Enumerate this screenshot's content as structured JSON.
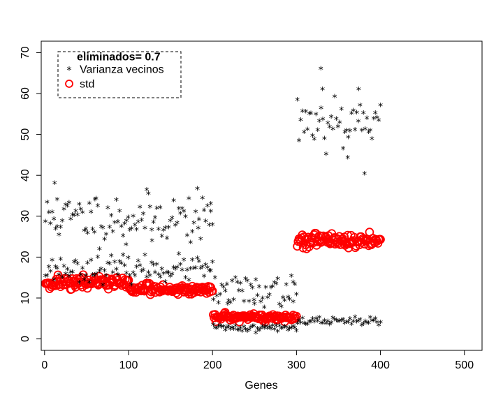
{
  "colors": {
    "series_star": "#000000",
    "series_std": "#ff0000"
  },
  "chart_data": {
    "type": "scatter",
    "xlabel": "Genes",
    "ylabel": "",
    "xlim": [
      -4,
      521
    ],
    "ylim": [
      -2.8,
      72.8
    ],
    "xticks": [
      "0",
      "100",
      "200",
      "300",
      "400",
      "500"
    ],
    "yticks": [
      "0",
      "10",
      "20",
      "30",
      "40",
      "50",
      "60",
      "70"
    ],
    "grid": false,
    "legend": {
      "position": "top-left",
      "title": "eliminados= 0.7",
      "entries": [
        {
          "label": "Varianza vecinos",
          "marker": "star",
          "color": "#000000"
        },
        {
          "label": "std",
          "marker": "circle",
          "color": "#ff0000"
        }
      ]
    },
    "series": [
      {
        "name": "Varianza vecinos",
        "marker": "star",
        "groups": [
          {
            "x_range": [
              1,
              200
            ],
            "y_center": 29.5,
            "y_spread": 3.0,
            "n": 100,
            "seed": 11,
            "extra": [
              [
                12,
                38
              ],
              [
                97,
                23
              ],
              [
                128,
                24
              ],
              [
                198,
                33
              ],
              [
                15,
                34
              ],
              [
                60,
                34
              ],
              [
                183,
                27
              ]
            ]
          },
          {
            "x_range": [
              1,
              200
            ],
            "y_center": 17.0,
            "y_spread": 1.5,
            "n": 100,
            "seed": 23,
            "extra": []
          },
          {
            "x_range": [
              201,
              300
            ],
            "y_center": 11.5,
            "y_spread": 1.8,
            "n": 50,
            "seed": 37,
            "extra": [
              [
                218,
                8.5
              ],
              [
                250,
                8.5
              ],
              [
                296,
                9.0
              ]
            ]
          },
          {
            "x_range": [
              201,
              300
            ],
            "y_center": 2.6,
            "y_spread": 0.5,
            "n": 50,
            "seed": 41,
            "extra": []
          },
          {
            "x_range": [
              301,
              400
            ],
            "y_center": 53.5,
            "y_spread": 3.5,
            "n": 50,
            "seed": 53,
            "extra": [
              [
                329,
                66
              ],
              [
                381,
                40.3
              ],
              [
                361,
                44.3
              ],
              [
                331,
                61
              ],
              [
                374,
                61
              ]
            ]
          },
          {
            "x_range": [
              301,
              400
            ],
            "y_center": 4.2,
            "y_spread": 0.5,
            "n": 50,
            "seed": 67,
            "extra": []
          }
        ]
      },
      {
        "name": "std",
        "marker": "circle",
        "groups": [
          {
            "x_range": [
              1,
              100
            ],
            "y_center": 13.8,
            "y_spread": 0.8,
            "n": 100,
            "seed": 71
          },
          {
            "x_range": [
              101,
              200
            ],
            "y_center": 12.1,
            "y_spread": 0.6,
            "n": 100,
            "seed": 83
          },
          {
            "x_range": [
              201,
              300
            ],
            "y_center": 5.2,
            "y_spread": 0.5,
            "n": 100,
            "seed": 97
          },
          {
            "x_range": [
              301,
              400
            ],
            "y_center": 24.0,
            "y_spread": 0.9,
            "n": 100,
            "seed": 101
          }
        ]
      }
    ]
  }
}
